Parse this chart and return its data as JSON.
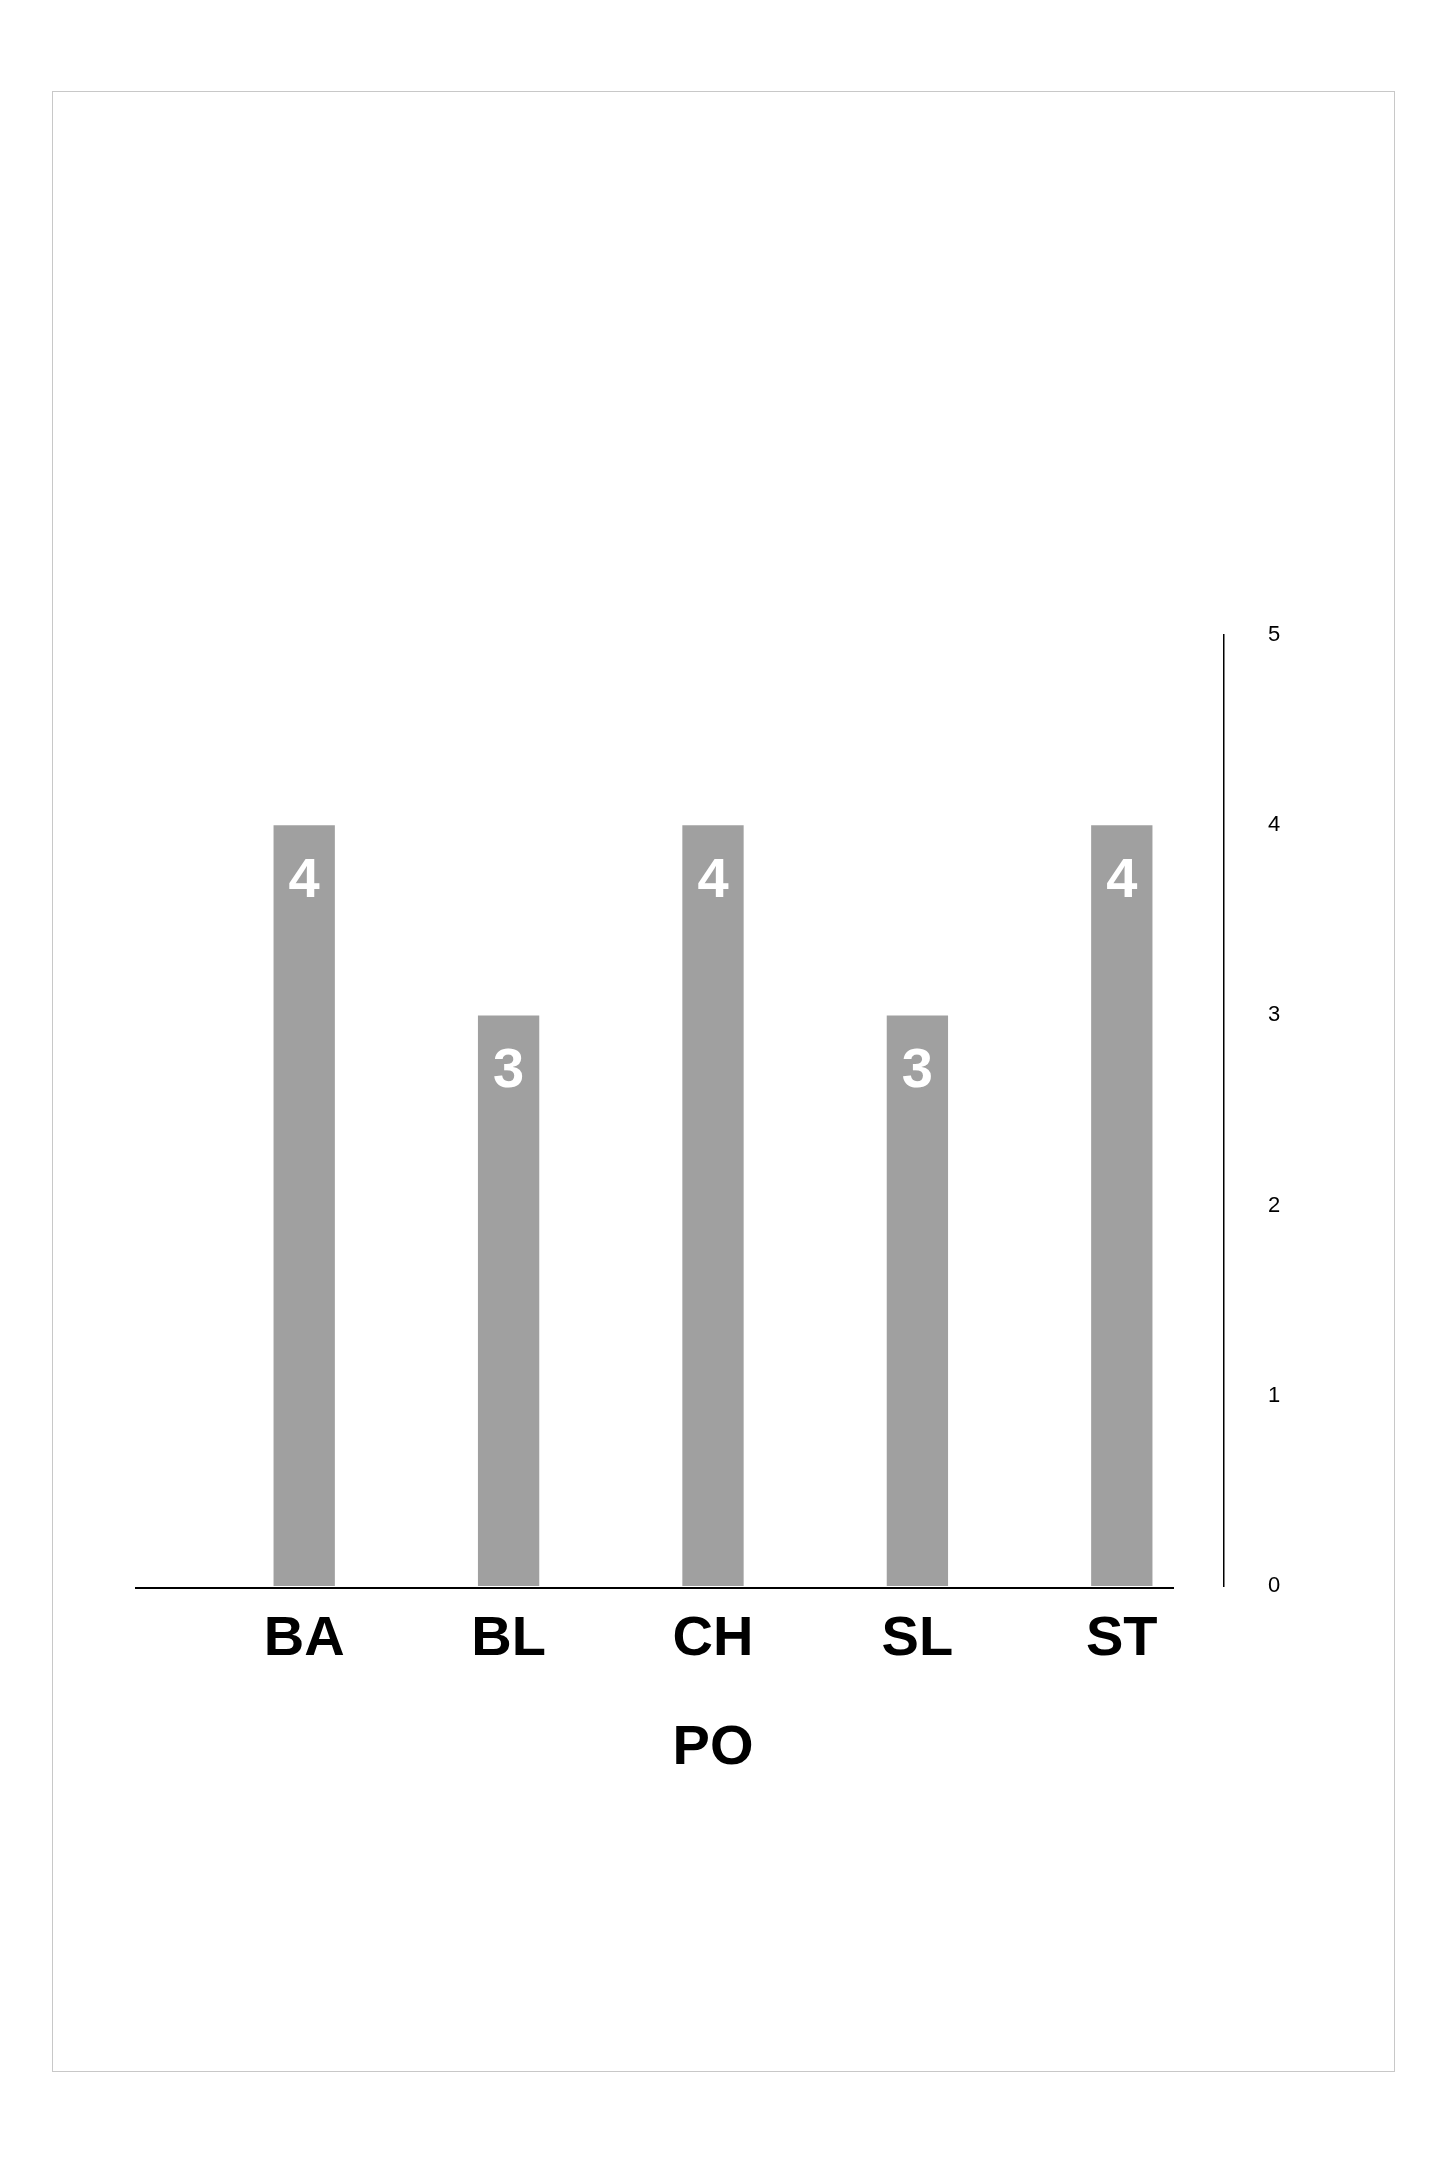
{
  "chart_data": {
    "type": "bar",
    "xlabel": "PO",
    "categories": [
      "BA",
      "BL",
      "CH",
      "SL",
      "ST"
    ],
    "values": [
      4,
      3,
      4,
      3,
      4
    ],
    "color": "#a0a0a0",
    "ylim": [
      0,
      5
    ],
    "yticks": [
      0,
      1,
      2,
      3,
      4,
      5
    ],
    "grid": false,
    "data_labels": true
  }
}
